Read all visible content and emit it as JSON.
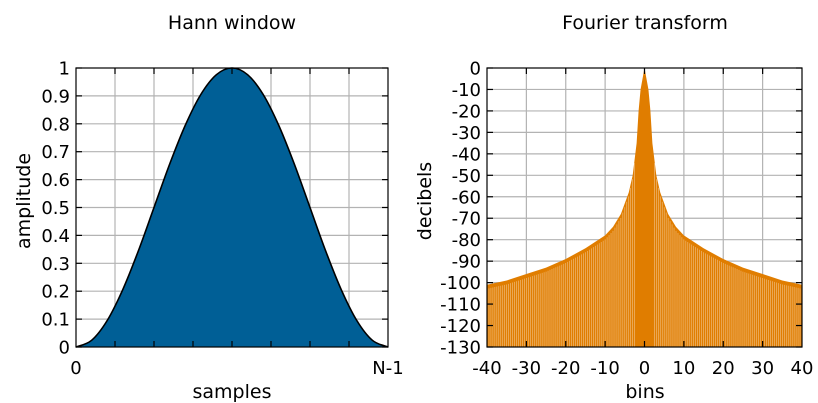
{
  "chart_data": [
    {
      "type": "area",
      "title": "Hann window",
      "xlabel": "samples",
      "ylabel": "amplitude",
      "x_tick_labels": [
        "0",
        "N-1"
      ],
      "y_tick_labels": [
        "0",
        "0.1",
        "0.2",
        "0.3",
        "0.4",
        "0.5",
        "0.6",
        "0.7",
        "0.8",
        "0.9",
        "1"
      ],
      "xlim": [
        0,
        1
      ],
      "ylim": [
        0,
        1
      ],
      "grid": true,
      "fill_color": "#005f96",
      "line_color": "#000000",
      "series": [
        {
          "x": [
            0,
            0.05,
            0.1,
            0.15,
            0.2,
            0.25,
            0.3,
            0.35,
            0.4,
            0.45,
            0.5,
            0.55,
            0.6,
            0.65,
            0.7,
            0.75,
            0.8,
            0.85,
            0.9,
            0.95,
            1
          ],
          "y": [
            0,
            0.024,
            0.095,
            0.206,
            0.345,
            0.5,
            0.655,
            0.794,
            0.905,
            0.976,
            1,
            0.976,
            0.905,
            0.794,
            0.655,
            0.5,
            0.345,
            0.206,
            0.095,
            0.024,
            0
          ]
        }
      ]
    },
    {
      "type": "area",
      "title": "Fourier transform",
      "xlabel": "bins",
      "ylabel": "decibels",
      "x_tick_labels": [
        "-40",
        "-30",
        "-20",
        "-10",
        "0",
        "10",
        "20",
        "30",
        "40"
      ],
      "y_tick_labels": [
        "0",
        "-10",
        "-20",
        "-30",
        "-40",
        "-50",
        "-60",
        "-70",
        "-80",
        "-90",
        "-100",
        "-110",
        "-120",
        "-130"
      ],
      "xlim": [
        -40,
        40
      ],
      "ylim": [
        -130,
        0
      ],
      "grid": true,
      "fill_color": "#e07d00",
      "series": [
        {
          "x": [
            -40,
            -35,
            -30,
            -25,
            -20,
            -15,
            -10,
            -8,
            -6,
            -4,
            -3,
            -2,
            -1.5,
            -1,
            0,
            1,
            1.5,
            2,
            3,
            4,
            6,
            8,
            10,
            15,
            20,
            25,
            30,
            35,
            40
          ],
          "y": [
            -101,
            -99,
            -96,
            -93,
            -89,
            -84,
            -78,
            -74,
            -68,
            -58,
            -50,
            -35,
            -20,
            -10,
            0,
            -10,
            -20,
            -35,
            -50,
            -58,
            -68,
            -74,
            -78,
            -84,
            -89,
            -93,
            -96,
            -99,
            -101
          ]
        }
      ]
    }
  ]
}
